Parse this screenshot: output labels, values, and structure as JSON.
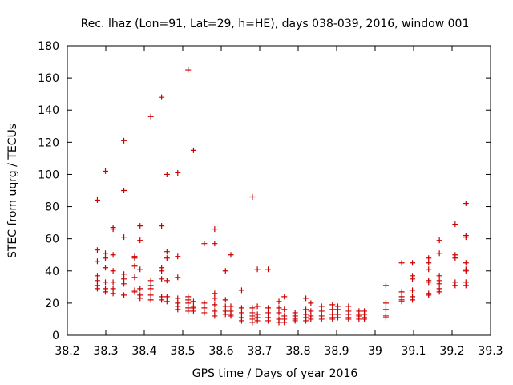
{
  "colors": {
    "points": "#cc0000",
    "axis": "#000000",
    "background": "#ffffff"
  },
  "chart_data": {
    "type": "scatter",
    "title": "Rec. lhaz (Lon=91, Lat=29, h=HE), days 038-039, 2016, window 001",
    "xlabel": "GPS time / Days of year 2016",
    "ylabel": "STEC from uqrg / TECUs",
    "xlim": [
      38.2,
      39.3
    ],
    "ylim": [
      0,
      180
    ],
    "xticks": [
      "38.2",
      "38.3",
      "38.4",
      "38.5",
      "38.6",
      "38.7",
      "38.8",
      "38.9",
      "39",
      "39.1",
      "39.2",
      "39.3"
    ],
    "yticks": [
      "0",
      "20",
      "40",
      "60",
      "80",
      "100",
      "120",
      "140",
      "160",
      "180"
    ],
    "grid": false,
    "legend": "none",
    "marker": "plus",
    "series": [
      {
        "name": "STEC",
        "points": [
          [
            38.278,
            84
          ],
          [
            38.278,
            53
          ],
          [
            38.278,
            46
          ],
          [
            38.278,
            37
          ],
          [
            38.278,
            34
          ],
          [
            38.278,
            31
          ],
          [
            38.278,
            29
          ],
          [
            38.299,
            102
          ],
          [
            38.299,
            51
          ],
          [
            38.299,
            48
          ],
          [
            38.299,
            42
          ],
          [
            38.299,
            33
          ],
          [
            38.299,
            29
          ],
          [
            38.299,
            27
          ],
          [
            38.319,
            67
          ],
          [
            38.319,
            66
          ],
          [
            38.319,
            50
          ],
          [
            38.319,
            40
          ],
          [
            38.319,
            33
          ],
          [
            38.319,
            29
          ],
          [
            38.319,
            26
          ],
          [
            38.347,
            121
          ],
          [
            38.347,
            90
          ],
          [
            38.347,
            61
          ],
          [
            38.347,
            38
          ],
          [
            38.347,
            35
          ],
          [
            38.347,
            32
          ],
          [
            38.347,
            25
          ],
          [
            38.375,
            49
          ],
          [
            38.375,
            48
          ],
          [
            38.375,
            43
          ],
          [
            38.375,
            36
          ],
          [
            38.375,
            28
          ],
          [
            38.375,
            27
          ],
          [
            38.389,
            68
          ],
          [
            38.389,
            59
          ],
          [
            38.389,
            41
          ],
          [
            38.389,
            29
          ],
          [
            38.389,
            25
          ],
          [
            38.389,
            23
          ],
          [
            38.417,
            136
          ],
          [
            38.417,
            34
          ],
          [
            38.417,
            31
          ],
          [
            38.417,
            29
          ],
          [
            38.417,
            25
          ],
          [
            38.417,
            22
          ],
          [
            38.445,
            148
          ],
          [
            38.445,
            68
          ],
          [
            38.445,
            42
          ],
          [
            38.445,
            40
          ],
          [
            38.445,
            35
          ],
          [
            38.445,
            24
          ],
          [
            38.445,
            22
          ],
          [
            38.459,
            100
          ],
          [
            38.459,
            52
          ],
          [
            38.459,
            48
          ],
          [
            38.459,
            34
          ],
          [
            38.459,
            24
          ],
          [
            38.459,
            21
          ],
          [
            38.487,
            101
          ],
          [
            38.487,
            49
          ],
          [
            38.487,
            36
          ],
          [
            38.487,
            23
          ],
          [
            38.487,
            20
          ],
          [
            38.487,
            18
          ],
          [
            38.487,
            16
          ],
          [
            38.514,
            165
          ],
          [
            38.514,
            24
          ],
          [
            38.514,
            22
          ],
          [
            38.514,
            20
          ],
          [
            38.514,
            17
          ],
          [
            38.514,
            15
          ],
          [
            38.528,
            115
          ],
          [
            38.528,
            21
          ],
          [
            38.528,
            18
          ],
          [
            38.528,
            17
          ],
          [
            38.528,
            15
          ],
          [
            38.556,
            57
          ],
          [
            38.556,
            20
          ],
          [
            38.556,
            17
          ],
          [
            38.556,
            14
          ],
          [
            38.583,
            66
          ],
          [
            38.583,
            57
          ],
          [
            38.583,
            26
          ],
          [
            38.583,
            23
          ],
          [
            38.583,
            19
          ],
          [
            38.583,
            15
          ],
          [
            38.583,
            12
          ],
          [
            38.611,
            40
          ],
          [
            38.611,
            22
          ],
          [
            38.611,
            18
          ],
          [
            38.611,
            15
          ],
          [
            38.611,
            13
          ],
          [
            38.625,
            50
          ],
          [
            38.625,
            18
          ],
          [
            38.625,
            15
          ],
          [
            38.625,
            13
          ],
          [
            38.625,
            12
          ],
          [
            38.653,
            28
          ],
          [
            38.653,
            17
          ],
          [
            38.653,
            14
          ],
          [
            38.653,
            11
          ],
          [
            38.653,
            9
          ],
          [
            38.681,
            86
          ],
          [
            38.681,
            17
          ],
          [
            38.681,
            14
          ],
          [
            38.681,
            12
          ],
          [
            38.681,
            10
          ],
          [
            38.681,
            8
          ],
          [
            38.694,
            41
          ],
          [
            38.694,
            18
          ],
          [
            38.694,
            13
          ],
          [
            38.694,
            11
          ],
          [
            38.694,
            9
          ],
          [
            38.722,
            41
          ],
          [
            38.722,
            17
          ],
          [
            38.722,
            14
          ],
          [
            38.722,
            11
          ],
          [
            38.722,
            9
          ],
          [
            38.75,
            21
          ],
          [
            38.75,
            17
          ],
          [
            38.75,
            14
          ],
          [
            38.75,
            10
          ],
          [
            38.75,
            8
          ],
          [
            38.764,
            24
          ],
          [
            38.764,
            16
          ],
          [
            38.764,
            12
          ],
          [
            38.764,
            10
          ],
          [
            38.764,
            8
          ],
          [
            38.792,
            14
          ],
          [
            38.792,
            12
          ],
          [
            38.792,
            10
          ],
          [
            38.792,
            9
          ],
          [
            38.82,
            23
          ],
          [
            38.82,
            16
          ],
          [
            38.82,
            13
          ],
          [
            38.82,
            11
          ],
          [
            38.82,
            9
          ],
          [
            38.833,
            20
          ],
          [
            38.833,
            15
          ],
          [
            38.833,
            12
          ],
          [
            38.833,
            10
          ],
          [
            38.861,
            18
          ],
          [
            38.861,
            15
          ],
          [
            38.861,
            12
          ],
          [
            38.861,
            10
          ],
          [
            38.889,
            19
          ],
          [
            38.889,
            16
          ],
          [
            38.889,
            13
          ],
          [
            38.889,
            11
          ],
          [
            38.889,
            10
          ],
          [
            38.903,
            18
          ],
          [
            38.903,
            16
          ],
          [
            38.903,
            13
          ],
          [
            38.903,
            11
          ],
          [
            38.931,
            18
          ],
          [
            38.931,
            15
          ],
          [
            38.931,
            13
          ],
          [
            38.931,
            11
          ],
          [
            38.931,
            10
          ],
          [
            38.958,
            15
          ],
          [
            38.958,
            13
          ],
          [
            38.958,
            12
          ],
          [
            38.958,
            10
          ],
          [
            38.972,
            15
          ],
          [
            38.972,
            13
          ],
          [
            38.972,
            11
          ],
          [
            38.972,
            10
          ],
          [
            39.028,
            31
          ],
          [
            39.028,
            20
          ],
          [
            39.028,
            16
          ],
          [
            39.028,
            12
          ],
          [
            39.028,
            11
          ],
          [
            39.069,
            45
          ],
          [
            39.069,
            27
          ],
          [
            39.069,
            24
          ],
          [
            39.069,
            22
          ],
          [
            39.069,
            21
          ],
          [
            39.097,
            45
          ],
          [
            39.097,
            37
          ],
          [
            39.097,
            35
          ],
          [
            39.097,
            28
          ],
          [
            39.097,
            24
          ],
          [
            39.097,
            22
          ],
          [
            39.139,
            48
          ],
          [
            39.139,
            45
          ],
          [
            39.139,
            41
          ],
          [
            39.139,
            34
          ],
          [
            39.139,
            33
          ],
          [
            39.139,
            26
          ],
          [
            39.139,
            25
          ],
          [
            39.167,
            59
          ],
          [
            39.167,
            51
          ],
          [
            39.167,
            37
          ],
          [
            39.167,
            34
          ],
          [
            39.167,
            32
          ],
          [
            39.167,
            29
          ],
          [
            39.167,
            27
          ],
          [
            39.208,
            69
          ],
          [
            39.208,
            50
          ],
          [
            39.208,
            48
          ],
          [
            39.208,
            33
          ],
          [
            39.208,
            31
          ],
          [
            39.236,
            82
          ],
          [
            39.236,
            62
          ],
          [
            39.236,
            61
          ],
          [
            39.236,
            45
          ],
          [
            39.236,
            41
          ],
          [
            39.236,
            40
          ],
          [
            39.236,
            33
          ],
          [
            39.236,
            31
          ]
        ]
      }
    ]
  }
}
